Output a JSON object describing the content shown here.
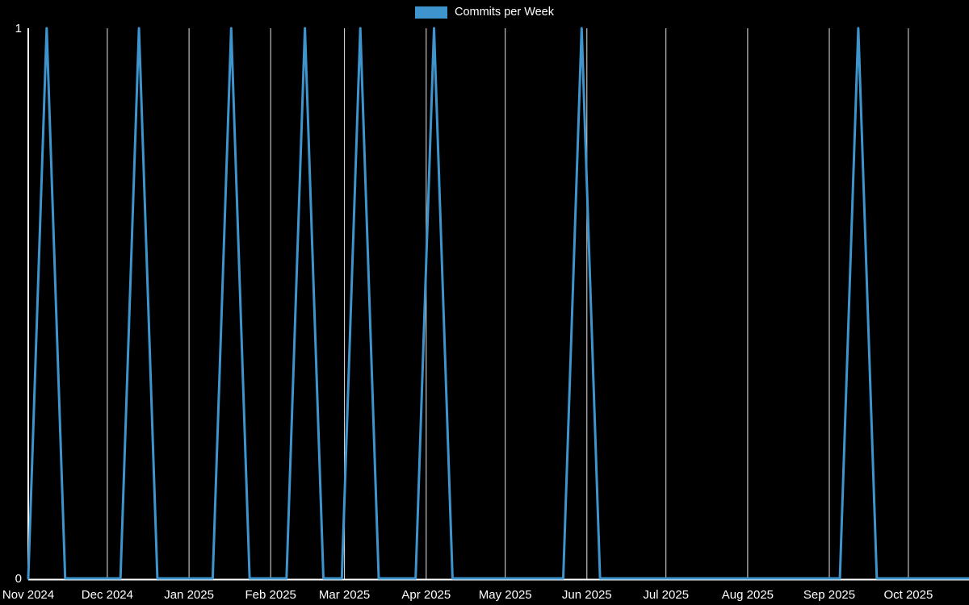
{
  "page": {
    "background": "#000000"
  },
  "legend": {
    "label": "Commits per Week",
    "swatch_color": "#3e95cd"
  },
  "chart_data": {
    "type": "line",
    "title": "Commits per Week",
    "legend_position": "top",
    "background": "#000000",
    "line_color": "#3e95cd",
    "grid_color": "#ffffff",
    "axis_color": "#ffffff",
    "text_color": "#ffffff",
    "grid": "vertical-only",
    "ylim": [
      0,
      1
    ],
    "y_ticks": [
      0,
      1
    ],
    "x_tick_labels": [
      "Nov 2024",
      "Dec 2024",
      "Jan 2025",
      "Feb 2025",
      "Mar 2025",
      "Apr 2025",
      "May 2025",
      "Jun 2025",
      "Jul 2025",
      "Aug 2025",
      "Sep 2025",
      "Oct 2025"
    ],
    "series": [
      {
        "name": "Commits per Week",
        "first_week": "2024-11-01",
        "week_interval_days": 7,
        "values": [
          0,
          1,
          0,
          0,
          0,
          0,
          1,
          0,
          0,
          0,
          0,
          1,
          0,
          0,
          0,
          1,
          0,
          0,
          1,
          0,
          0,
          0,
          1,
          0,
          0,
          0,
          0,
          0,
          0,
          0,
          1,
          0,
          0,
          0,
          0,
          0,
          0,
          0,
          0,
          0,
          0,
          0,
          0,
          0,
          0,
          1,
          0,
          0,
          0,
          0,
          0
        ],
        "approx_commit_week_dates": [
          "2024-11-08",
          "2024-12-13",
          "2025-01-17",
          "2025-02-14",
          "2025-03-07",
          "2025-04-04",
          "2025-05-30",
          "2025-09-12"
        ]
      }
    ]
  }
}
